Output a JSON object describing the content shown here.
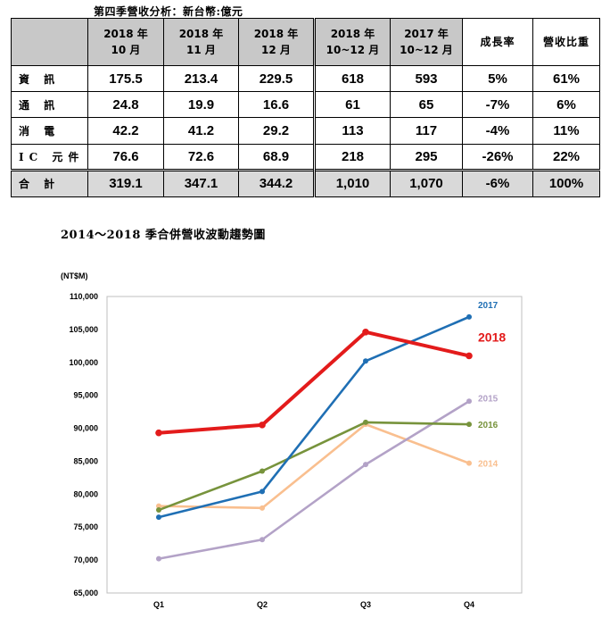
{
  "table": {
    "caption": "第四季營收分析：新台幣:億元",
    "headers": [
      {
        "line1": "",
        "line2": ""
      },
      {
        "line1": "2018 年",
        "line2": "10 月"
      },
      {
        "line1": "2018 年",
        "line2": "11 月"
      },
      {
        "line1": "2018 年",
        "line2": "12 月"
      },
      {
        "line1": "2018 年",
        "line2": "10~12 月"
      },
      {
        "line1": "2017 年",
        "line2": "10~12 月"
      },
      {
        "line1": "成長率",
        "line2": ""
      },
      {
        "line1": "營收比重",
        "line2": ""
      }
    ],
    "rows": [
      {
        "label": "資 訊",
        "values": [
          "175.5",
          "213.4",
          "229.5",
          "618",
          "593",
          "5%",
          "61%"
        ]
      },
      {
        "label": "通 訊",
        "values": [
          "24.8",
          "19.9",
          "16.6",
          "61",
          "65",
          "-7%",
          "6%"
        ]
      },
      {
        "label": "消 電",
        "values": [
          "42.2",
          "41.2",
          "29.2",
          "113",
          "117",
          "-4%",
          "11%"
        ]
      },
      {
        "label": "IC 元件",
        "values": [
          "76.6",
          "72.6",
          "68.9",
          "218",
          "295",
          "-26%",
          "22%"
        ]
      }
    ],
    "total": {
      "label": "合 計",
      "values": [
        "319.1",
        "347.1",
        "344.2",
        "1,010",
        "1,070",
        "-6%",
        "100%"
      ]
    }
  },
  "chart_data": {
    "type": "line",
    "title": "2014～2018 季合併營收波動趨勢圖",
    "ylabel": "(NT$M)",
    "xlabel": "",
    "categories": [
      "Q1",
      "Q2",
      "Q3",
      "Q4"
    ],
    "ylim": [
      65000,
      110000
    ],
    "ytick_step": 5000,
    "grid": false,
    "legend": "inline labels at line ends",
    "series": [
      {
        "name": "2014",
        "color": "#f9bf8f",
        "values": [
          78200,
          77900,
          90600,
          84700
        ]
      },
      {
        "name": "2015",
        "color": "#b3a2c7",
        "values": [
          70200,
          73100,
          84500,
          94100
        ]
      },
      {
        "name": "2016",
        "color": "#77933c",
        "values": [
          77600,
          83500,
          90900,
          90600
        ]
      },
      {
        "name": "2017",
        "color": "#1f6fb4",
        "values": [
          76500,
          80400,
          100200,
          106900
        ]
      },
      {
        "name": "2018",
        "color": "#e31b1b",
        "values": [
          89300,
          90500,
          104600,
          101000
        ]
      }
    ]
  }
}
